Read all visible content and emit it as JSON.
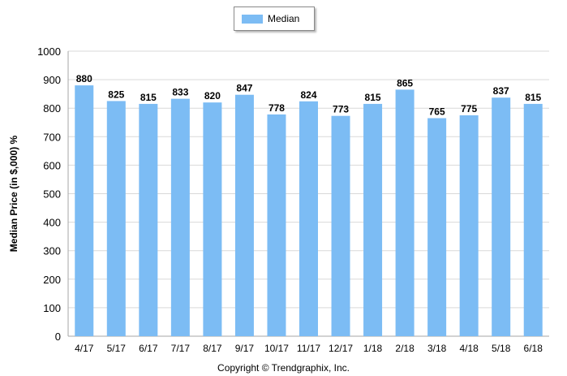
{
  "chart_data": {
    "type": "bar",
    "categories": [
      "4/17",
      "5/17",
      "6/17",
      "7/17",
      "8/17",
      "9/17",
      "10/17",
      "11/17",
      "12/17",
      "1/18",
      "2/18",
      "3/18",
      "4/18",
      "5/18",
      "6/18"
    ],
    "series": [
      {
        "name": "Median",
        "values": [
          880,
          825,
          815,
          833,
          820,
          847,
          778,
          824,
          773,
          815,
          865,
          765,
          775,
          837,
          815
        ]
      }
    ],
    "ylabel": "Median Price (in $,000) %",
    "xlabel": "",
    "ylim": [
      0,
      1000
    ],
    "yticks": [
      0,
      100,
      200,
      300,
      400,
      500,
      600,
      700,
      800,
      900,
      1000
    ],
    "grid": true,
    "legend": "top-center",
    "bar_color": "#7cbcf4"
  },
  "footer": {
    "copyright": "Copyright © Trendgraphix, Inc."
  }
}
